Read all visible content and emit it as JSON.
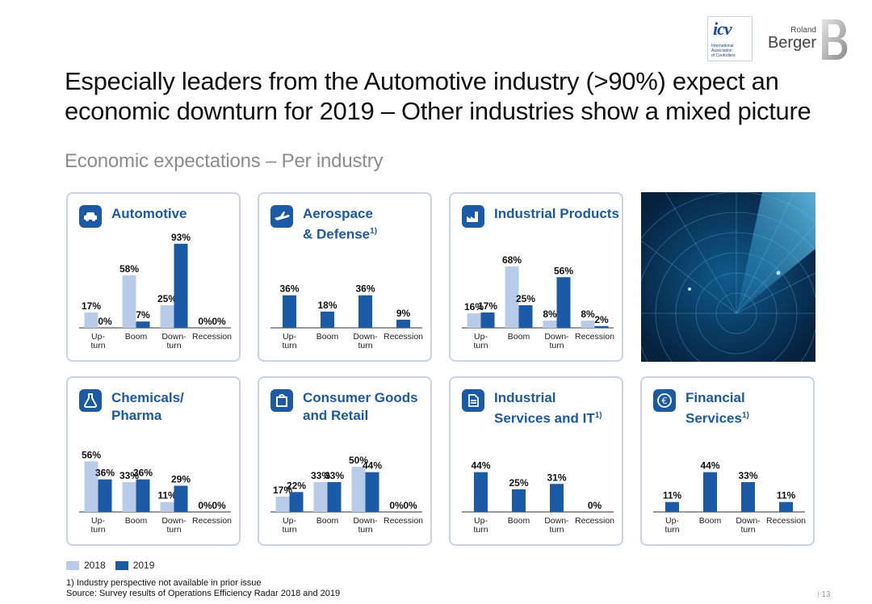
{
  "logos": {
    "icv": {
      "mark": "icv",
      "sub": [
        "International",
        "Association",
        "of Controllers"
      ]
    },
    "rb": {
      "line1": "Roland",
      "line2": "Berger"
    }
  },
  "title": "Especially leaders from the Automotive industry (>90%) expect an economic downturn for 2019 – Other industries show a mixed picture",
  "subtitle": "Economic expectations – Per industry",
  "colors": {
    "y2018": "#b8cce9",
    "y2019": "#1a5aa6",
    "frame": "#c9d2e8",
    "accent": "#1a5aa6"
  },
  "legend": [
    {
      "name": "2018",
      "color": "#b8cce9"
    },
    {
      "name": "2019",
      "color": "#1a5aa6"
    }
  ],
  "chart_data": [
    {
      "type": "bar",
      "title": "Automotive",
      "icon": "car-icon",
      "categories": [
        "Up-\nturn",
        "Boom",
        "Down-\nturn",
        "Recession"
      ],
      "series": [
        {
          "name": "2018",
          "values": [
            17,
            58,
            25,
            0
          ]
        },
        {
          "name": "2019",
          "values": [
            0,
            7,
            93,
            0
          ]
        }
      ],
      "ylim": [
        0,
        100
      ]
    },
    {
      "type": "bar",
      "title": "Aerospace\n& Defense",
      "sup": "1)",
      "icon": "airplane-icon",
      "categories": [
        "Up-\nturn",
        "Boom",
        "Down-\nturn",
        "Recession"
      ],
      "series": [
        {
          "name": "2019",
          "values": [
            36,
            18,
            36,
            9
          ]
        }
      ],
      "ylim": [
        0,
        100
      ]
    },
    {
      "type": "bar",
      "title": "Industrial Products",
      "icon": "factory-icon",
      "categories": [
        "Up-\nturn",
        "Boom",
        "Down-\nturn",
        "Recession"
      ],
      "series": [
        {
          "name": "2018",
          "values": [
            16,
            68,
            8,
            8
          ]
        },
        {
          "name": "2019",
          "values": [
            17,
            25,
            56,
            2
          ]
        }
      ],
      "ylim": [
        0,
        100
      ]
    },
    {
      "type": "bar",
      "title": "Chemicals/\nPharma",
      "icon": "flask-icon",
      "categories": [
        "Up-\nturn",
        "Boom",
        "Down-\nturn",
        "Recession"
      ],
      "series": [
        {
          "name": "2018",
          "values": [
            56,
            33,
            11,
            0
          ]
        },
        {
          "name": "2019",
          "values": [
            36,
            36,
            29,
            0
          ]
        }
      ],
      "ylim": [
        0,
        100
      ]
    },
    {
      "type": "bar",
      "title": "Consumer Goods\nand Retail",
      "icon": "shopping-bag-icon",
      "categories": [
        "Up-\nturn",
        "Boom",
        "Down-\nturn",
        "Recession"
      ],
      "series": [
        {
          "name": "2018",
          "values": [
            17,
            33,
            50,
            0
          ]
        },
        {
          "name": "2019",
          "values": [
            22,
            33,
            44,
            0
          ]
        }
      ],
      "ylim": [
        0,
        100
      ]
    },
    {
      "type": "bar",
      "title": "Industrial\nServices and IT",
      "sup": "1)",
      "icon": "document-icon",
      "categories": [
        "Up-\nturn",
        "Boom",
        "Down-\nturn",
        "Recession"
      ],
      "series": [
        {
          "name": "2019",
          "values": [
            44,
            25,
            31,
            0
          ]
        }
      ],
      "ylim": [
        0,
        100
      ]
    },
    {
      "type": "bar",
      "title": "Financial\nServices",
      "sup": "1)",
      "icon": "euro-icon",
      "categories": [
        "Up-\nturn",
        "Boom",
        "Down-\nturn",
        "Recession"
      ],
      "series": [
        {
          "name": "2019",
          "values": [
            11,
            44,
            33,
            11
          ]
        }
      ],
      "ylim": [
        0,
        100
      ]
    }
  ],
  "footnote": "1) Industry perspective not available in prior issue",
  "source": "Source: Survey results of Operations Efficiency Radar 2018 and 2019",
  "page_number": "13"
}
